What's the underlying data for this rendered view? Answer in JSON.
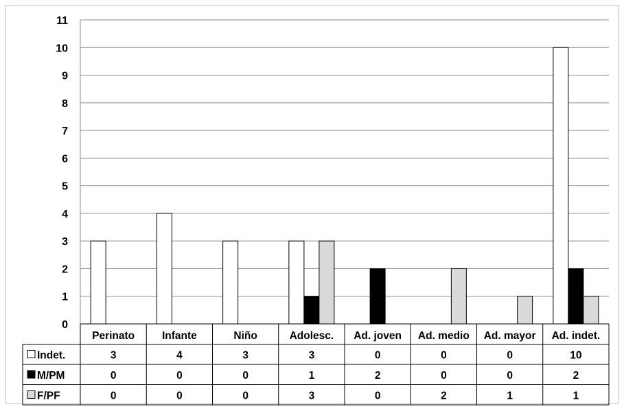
{
  "chart_data": {
    "type": "bar",
    "title": "",
    "xlabel": "",
    "ylabel": "",
    "ylim": [
      0,
      11
    ],
    "yticks": [
      0,
      1,
      2,
      3,
      4,
      5,
      6,
      7,
      8,
      9,
      10,
      11
    ],
    "grid": true,
    "legend": "data-table-left",
    "categories": [
      "Perinato",
      "Infante",
      "Niño",
      "Adolesc.",
      "Ad. joven",
      "Ad. medio",
      "Ad. mayor",
      "Ad. indet."
    ],
    "series": [
      {
        "name": "Indet.",
        "color": "#ffffff",
        "values": [
          3,
          4,
          3,
          3,
          0,
          0,
          0,
          10
        ]
      },
      {
        "name": "M/PM",
        "color": "#000000",
        "values": [
          0,
          0,
          0,
          1,
          2,
          0,
          0,
          2
        ]
      },
      {
        "name": "F/PF",
        "color": "#d9d9d9",
        "values": [
          0,
          0,
          0,
          3,
          0,
          2,
          1,
          1
        ]
      }
    ]
  }
}
